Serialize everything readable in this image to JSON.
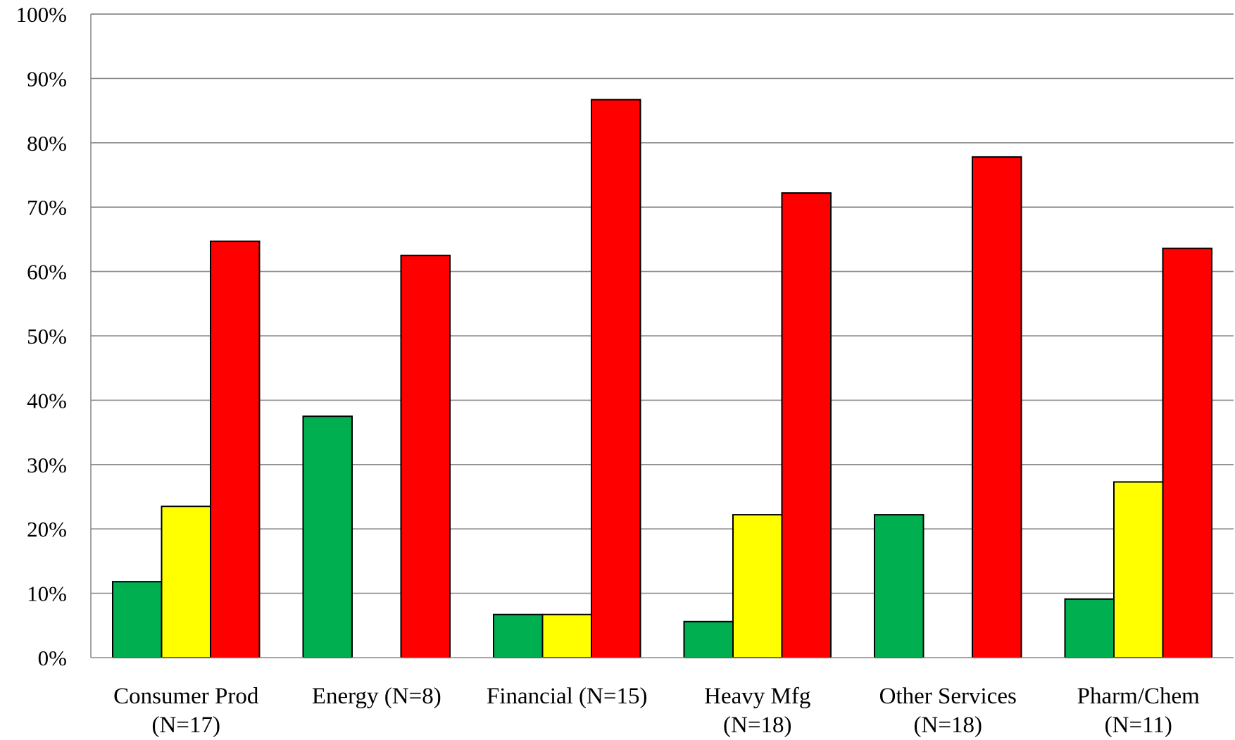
{
  "chart_data": {
    "type": "bar",
    "categories": [
      [
        "Consumer Prod",
        "(N=17)"
      ],
      [
        "Energy (N=8)"
      ],
      [
        "Financial (N=15)"
      ],
      [
        "Heavy Mfg",
        "(N=18)"
      ],
      [
        "Other Services",
        "(N=18)"
      ],
      [
        "Pharm/Chem",
        "(N=11)"
      ]
    ],
    "series": [
      {
        "color": "#00b050",
        "values": [
          11.8,
          37.5,
          6.7,
          5.6,
          22.2,
          9.1
        ]
      },
      {
        "color": "#ffff00",
        "values": [
          23.5,
          0,
          6.7,
          22.2,
          0,
          27.3
        ]
      },
      {
        "color": "#ff0000",
        "values": [
          64.7,
          62.5,
          86.7,
          72.2,
          77.8,
          63.6
        ]
      }
    ],
    "ylim": [
      0,
      100
    ],
    "yticks": [
      "0%",
      "10%",
      "20%",
      "30%",
      "40%",
      "50%",
      "60%",
      "70%",
      "80%",
      "90%",
      "100%"
    ],
    "grid": true,
    "legend": "none"
  }
}
